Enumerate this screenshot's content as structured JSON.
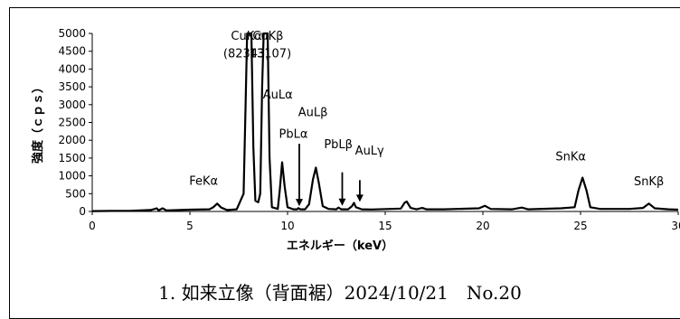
{
  "caption": "1. 如来立像（背面裾）2024/10/21　No.20",
  "chart_data": {
    "type": "line",
    "xlabel": "エネルギー（keV）",
    "ylabel": "強度（ｃｐｓ）",
    "xlim": [
      0,
      30
    ],
    "ylim": [
      0,
      5000
    ],
    "xticks": [
      0,
      5,
      10,
      15,
      20,
      25,
      30
    ],
    "yticks": [
      0,
      500,
      1000,
      1500,
      2000,
      2500,
      3000,
      3500,
      4000,
      4500,
      5000
    ],
    "grid": false,
    "series": [
      {
        "values": [
          [
            0,
            10
          ],
          [
            1,
            15
          ],
          [
            2,
            20
          ],
          [
            3,
            40
          ],
          [
            3.3,
            90
          ],
          [
            3.4,
            30
          ],
          [
            3.6,
            90
          ],
          [
            3.8,
            30
          ],
          [
            5,
            50
          ],
          [
            6.0,
            60
          ],
          [
            6.2,
            120
          ],
          [
            6.4,
            220
          ],
          [
            6.6,
            110
          ],
          [
            6.9,
            40
          ],
          [
            7.4,
            60
          ],
          [
            7.75,
            500
          ],
          [
            7.85,
            3000
          ],
          [
            7.93,
            5000
          ],
          [
            8.15,
            5000
          ],
          [
            8.25,
            1800
          ],
          [
            8.35,
            300
          ],
          [
            8.5,
            260
          ],
          [
            8.6,
            500
          ],
          [
            8.7,
            3500
          ],
          [
            8.78,
            5000
          ],
          [
            8.98,
            5000
          ],
          [
            9.08,
            1500
          ],
          [
            9.2,
            120
          ],
          [
            9.5,
            70
          ],
          [
            9.6,
            600
          ],
          [
            9.72,
            1380
          ],
          [
            9.85,
            700
          ],
          [
            10.0,
            120
          ],
          [
            10.3,
            60
          ],
          [
            10.5,
            60
          ],
          [
            10.55,
            95
          ],
          [
            10.65,
            60
          ],
          [
            10.9,
            60
          ],
          [
            11.1,
            200
          ],
          [
            11.3,
            900
          ],
          [
            11.45,
            1230
          ],
          [
            11.6,
            800
          ],
          [
            11.8,
            150
          ],
          [
            12.1,
            70
          ],
          [
            12.5,
            60
          ],
          [
            12.6,
            110
          ],
          [
            12.75,
            60
          ],
          [
            13.1,
            60
          ],
          [
            13.3,
            150
          ],
          [
            13.4,
            240
          ],
          [
            13.5,
            120
          ],
          [
            13.8,
            60
          ],
          [
            14.3,
            55
          ],
          [
            15.8,
            80
          ],
          [
            16.0,
            250
          ],
          [
            16.1,
            280
          ],
          [
            16.3,
            100
          ],
          [
            16.6,
            60
          ],
          [
            16.9,
            100
          ],
          [
            17.1,
            60
          ],
          [
            18.0,
            60
          ],
          [
            19.8,
            90
          ],
          [
            20.1,
            160
          ],
          [
            20.4,
            70
          ],
          [
            21.5,
            60
          ],
          [
            22.0,
            110
          ],
          [
            22.3,
            60
          ],
          [
            24.0,
            90
          ],
          [
            24.7,
            120
          ],
          [
            24.9,
            600
          ],
          [
            25.1,
            950
          ],
          [
            25.3,
            600
          ],
          [
            25.5,
            120
          ],
          [
            26.0,
            70
          ],
          [
            27.5,
            70
          ],
          [
            28.2,
            100
          ],
          [
            28.5,
            220
          ],
          [
            28.8,
            90
          ],
          [
            29.5,
            60
          ],
          [
            30,
            50
          ]
        ]
      }
    ],
    "annotations": [
      {
        "label": "CuKα",
        "x": 7.9,
        "y": 4950
      },
      {
        "label": "(82343)",
        "x": 7.9,
        "y": 4450
      },
      {
        "label": "CuKβ",
        "x": 9.0,
        "y": 4950
      },
      {
        "label": "(13107)",
        "x": 9.0,
        "y": 4450
      },
      {
        "label": "AuLα",
        "x": 9.5,
        "y": 3300
      },
      {
        "label": "AuLβ",
        "x": 11.3,
        "y": 2800
      },
      {
        "label": "PbLα",
        "x": 10.3,
        "y": 2200
      },
      {
        "label": "PbLβ",
        "x": 12.6,
        "y": 1900
      },
      {
        "label": "AuLγ",
        "x": 14.2,
        "y": 1720
      },
      {
        "label": "FeKα",
        "x": 5.7,
        "y": 870
      },
      {
        "label": "SnKα",
        "x": 24.5,
        "y": 1560
      },
      {
        "label": "SnKβ",
        "x": 28.5,
        "y": 860
      }
    ],
    "arrows": [
      {
        "x": 10.6,
        "y_start": 1900,
        "y_end": 150
      },
      {
        "x": 12.8,
        "y_start": 1100,
        "y_end": 160
      },
      {
        "x": 13.7,
        "y_start": 880,
        "y_end": 270
      }
    ]
  }
}
